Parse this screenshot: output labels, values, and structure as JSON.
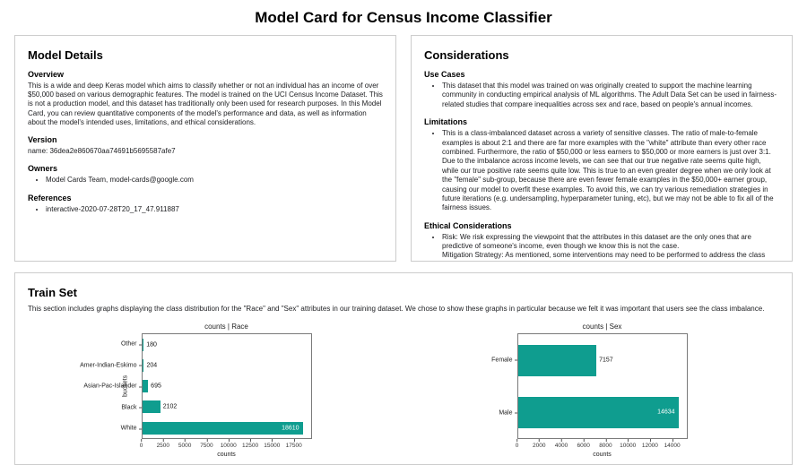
{
  "page": {
    "title": "Model Card for Census Income Classifier"
  },
  "model_details": {
    "title": "Model Details",
    "overview": {
      "heading": "Overview",
      "text": "This is a wide and deep Keras model which aims to classify whether or not an individual has an income of over $50,000 based on various demographic features. The model is trained on the UCI Census Income Dataset. This is not a production model, and this dataset has traditionally only been used for research purposes. In this Model Card, you can review quantitative components of the model's performance and data, as well as information about the model's intended uses, limitations, and ethical considerations."
    },
    "version": {
      "heading": "Version",
      "text": "name: 36dea2e860670aa74691b5695587afe7"
    },
    "owners": {
      "heading": "Owners",
      "items": [
        "Model Cards Team, model-cards@google.com"
      ]
    },
    "references": {
      "heading": "References",
      "items": [
        "interactive-2020-07-28T20_17_47.911887"
      ]
    }
  },
  "considerations": {
    "title": "Considerations",
    "use_cases": {
      "heading": "Use Cases",
      "items": [
        "This dataset that this model was trained on was originally created to support the machine learning community in conducting empirical analysis of ML algorithms. The Adult Data Set can be used in fairness-related studies that compare inequalities across sex and race, based on people's annual incomes."
      ]
    },
    "limitations": {
      "heading": "Limitations",
      "items": [
        "This is a class-imbalanced dataset across a variety of sensitive classes. The ratio of male-to-female examples is about 2:1 and there are far more examples with the \"white\" attribute than every other race combined. Furthermore, the ratio of $50,000 or less earners to $50,000 or more earners is just over 3:1. Due to the imbalance across income levels, we can see that our true negative rate seems quite high, while our true positive rate seems quite low. This is true to an even greater degree when we only look at the \"female\" sub-group, because there are even fewer female examples in the $50,000+ earner group, causing our model to overfit these examples. To avoid this, we can try various remediation strategies in future iterations (e.g. undersampling, hyperparameter tuning, etc), but we may not be able to fix all of the fairness issues."
      ]
    },
    "ethical": {
      "heading": "Ethical Considerations",
      "risk": "Risk: We risk expressing the viewpoint that the attributes in this dataset are the only ones that are predictive of someone's income, even though we know this is not the case.",
      "mitigation": "Mitigation Strategy: As mentioned, some interventions may need to be performed to address the class imbalances in the dataset."
    }
  },
  "train_set": {
    "title": "Train Set",
    "description": "This section includes graphs displaying the class distribution for the \"Race\" and \"Sex\" attributes in our training dataset. We chose to show these graphs in particular because we felt it was important that users see the class imbalance."
  },
  "chart_data": [
    {
      "type": "bar",
      "orientation": "horizontal",
      "title": "counts | Race",
      "xlabel": "counts",
      "ylabel": "buckets",
      "categories": [
        "Other",
        "Amer-Indian-Eskimo",
        "Asian-Pac-Islander",
        "Black",
        "White"
      ],
      "values": [
        180,
        204,
        695,
        2102,
        18610
      ],
      "xlim": [
        0,
        19540
      ],
      "xticks": [
        0,
        2500,
        5000,
        7500,
        10000,
        12500,
        15000,
        17500
      ],
      "bar_color": "#0f9d8f",
      "grid": false,
      "legend": false
    },
    {
      "type": "bar",
      "orientation": "horizontal",
      "title": "counts | Sex",
      "xlabel": "counts",
      "ylabel": "",
      "categories": [
        "Female",
        "Male"
      ],
      "values": [
        7157,
        14634
      ],
      "xlim": [
        0,
        15365
      ],
      "xticks": [
        0,
        2000,
        4000,
        6000,
        8000,
        10000,
        12000,
        14000
      ],
      "bar_color": "#0f9d8f",
      "grid": false,
      "legend": false
    }
  ]
}
